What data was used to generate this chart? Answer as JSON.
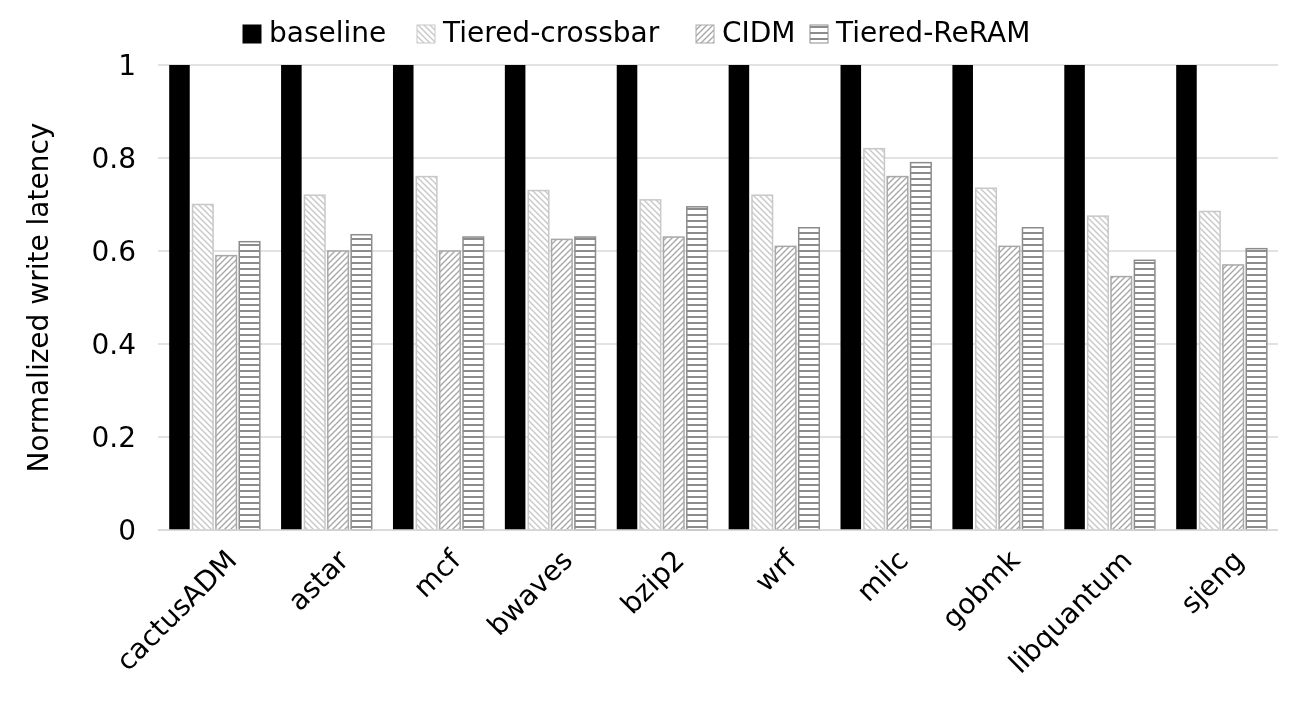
{
  "chart_data": {
    "type": "bar",
    "ylabel": "Normalized write latency",
    "categories": [
      "cactusADM",
      "astar",
      "mcf",
      "bwaves",
      "bzip2",
      "wrf",
      "milc",
      "gobmk",
      "libquantum",
      "sjeng"
    ],
    "series": [
      {
        "name": "baseline",
        "color": "#000000",
        "values": [
          1,
          1,
          1,
          1,
          1,
          1,
          1,
          1,
          1,
          1
        ]
      },
      {
        "name": "Tiered-crossbar",
        "color": "#c8c8c8",
        "values": [
          0.7,
          0.72,
          0.76,
          0.73,
          0.71,
          0.72,
          0.82,
          0.735,
          0.675,
          0.685
        ]
      },
      {
        "name": "CIDM",
        "color": "#a8a8a8",
        "values": [
          0.59,
          0.6,
          0.6,
          0.625,
          0.63,
          0.61,
          0.76,
          0.61,
          0.545,
          0.57
        ]
      },
      {
        "name": "Tiered-ReRAM",
        "color": "#8c8c8c",
        "values": [
          0.62,
          0.635,
          0.63,
          0.63,
          0.695,
          0.65,
          0.79,
          0.65,
          0.58,
          0.605
        ]
      }
    ],
    "ylim": [
      0,
      1
    ],
    "yticks": [
      0,
      0.2,
      0.4,
      0.6,
      0.8,
      1
    ],
    "grid": "y",
    "legend": "top"
  }
}
